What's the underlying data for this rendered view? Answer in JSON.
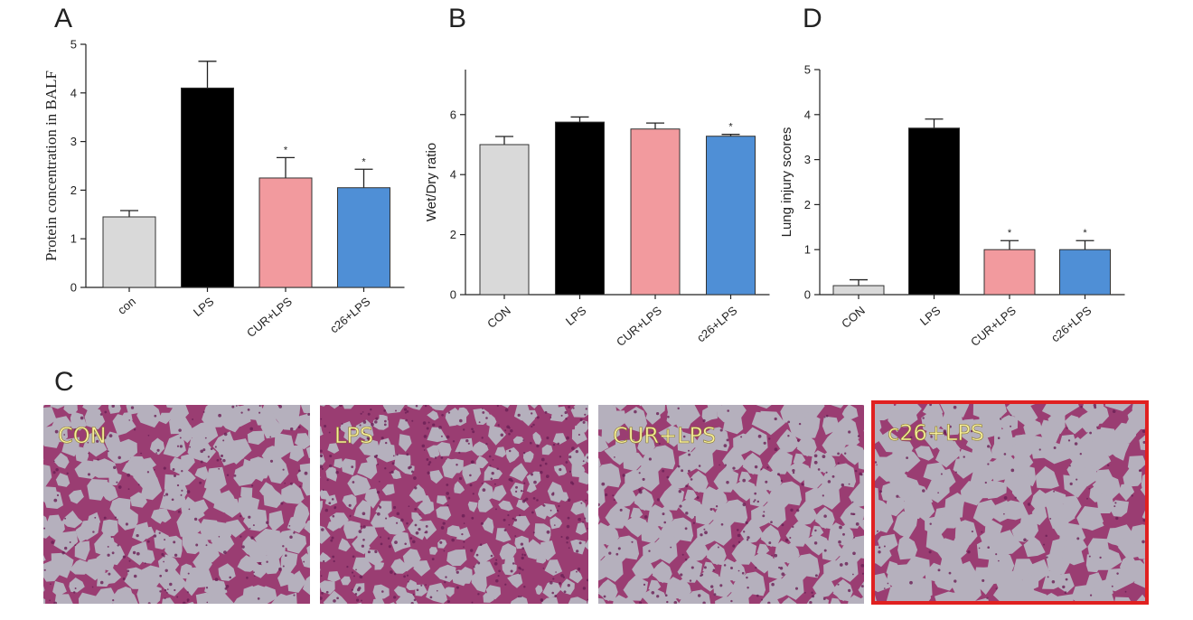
{
  "panel_letters": {
    "A": "A",
    "B": "B",
    "C": "C",
    "D": "D"
  },
  "chart_data": [
    {
      "panel": "A",
      "type": "bar",
      "ylabel": "Protein concentration in BALF",
      "xlabel": "",
      "ylim": [
        0,
        5
      ],
      "yticks": [
        0,
        1,
        2,
        3,
        4,
        5
      ],
      "categories": [
        "con",
        "LPS",
        "CUR+LPS",
        "c26+LPS"
      ],
      "values": [
        1.45,
        4.1,
        2.25,
        2.05
      ],
      "errors": [
        0.13,
        0.55,
        0.42,
        0.38
      ],
      "significance": [
        "",
        "",
        "*",
        "*"
      ],
      "colors": [
        "#d9d9d9",
        "#000000",
        "#f29a9e",
        "#4f8fd6"
      ]
    },
    {
      "panel": "B",
      "type": "bar",
      "ylabel": "Wet/Dry ratio",
      "xlabel": "",
      "ylim": [
        0,
        7.5
      ],
      "yticks": [
        0,
        2,
        4,
        6
      ],
      "categories": [
        "CON",
        "LPS",
        "CUR+LPS",
        "c26+LPS"
      ],
      "values": [
        5.0,
        5.75,
        5.52,
        5.28
      ],
      "errors": [
        0.27,
        0.17,
        0.2,
        0.06
      ],
      "significance": [
        "",
        "",
        "",
        "*"
      ],
      "colors": [
        "#d9d9d9",
        "#000000",
        "#f29a9e",
        "#4f8fd6"
      ]
    },
    {
      "panel": "D",
      "type": "bar",
      "ylabel": "Lung injury scores",
      "xlabel": "",
      "ylim": [
        0,
        5
      ],
      "yticks": [
        0,
        1,
        2,
        3,
        4,
        5
      ],
      "categories": [
        "CON",
        "LPS",
        "CUR+LPS",
        "c26+LPS"
      ],
      "values": [
        0.2,
        3.7,
        1.0,
        1.0
      ],
      "errors": [
        0.13,
        0.2,
        0.2,
        0.2
      ],
      "significance": [
        "",
        "",
        "*",
        "*"
      ],
      "colors": [
        "#d9d9d9",
        "#000000",
        "#f29a9e",
        "#4f8fd6"
      ]
    }
  ],
  "histology": {
    "panels": [
      {
        "label": "CON",
        "density": "medium",
        "highlighted": false
      },
      {
        "label": "LPS",
        "density": "high",
        "highlighted": false
      },
      {
        "label": "CUR+LPS",
        "density": "medium",
        "highlighted": false
      },
      {
        "label": "c26+LPS",
        "density": "low",
        "highlighted": true
      }
    ],
    "tissue_color": "#9a3d72",
    "background_color": "#b5b0bd",
    "highlight_color": "#e02020"
  }
}
